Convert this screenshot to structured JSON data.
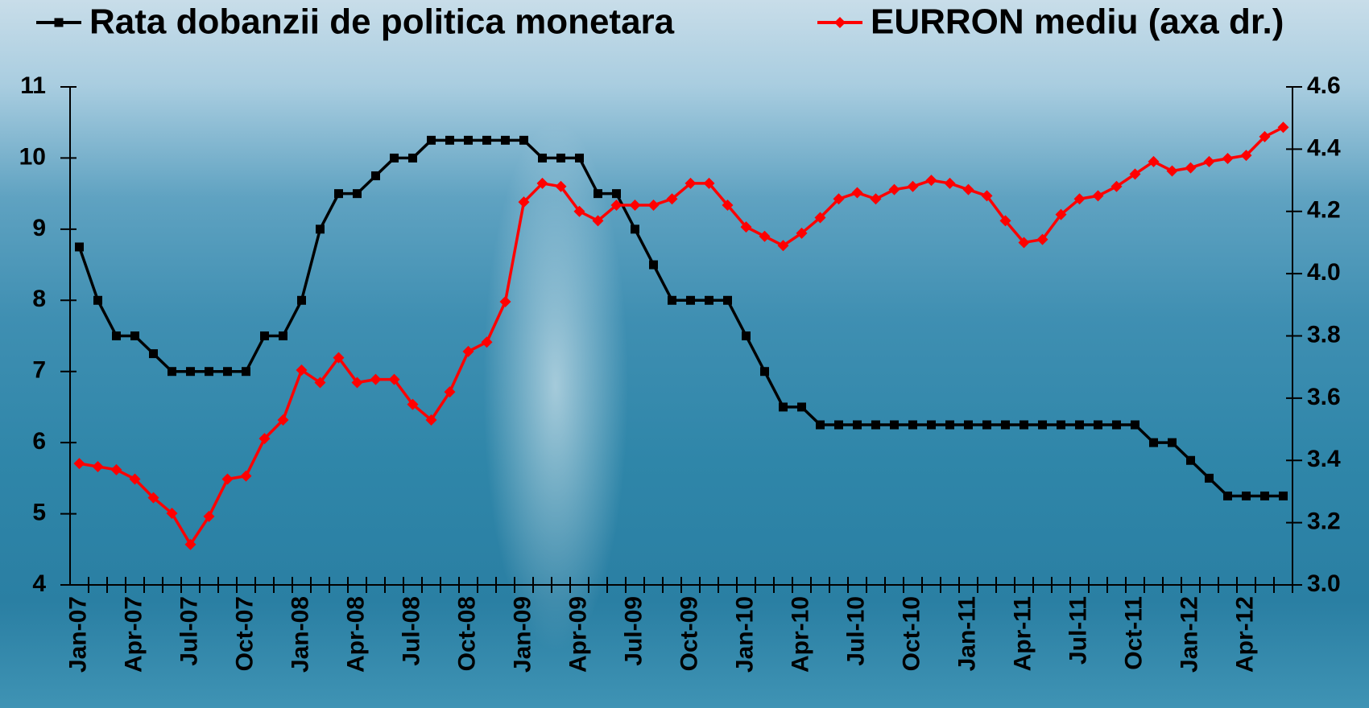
{
  "chart_data": {
    "type": "line",
    "categories": [
      "Jan-07",
      null,
      null,
      "Apr-07",
      null,
      null,
      "Jul-07",
      null,
      null,
      "Oct-07",
      null,
      null,
      "Jan-08",
      null,
      null,
      "Apr-08",
      null,
      null,
      "Jul-08",
      null,
      null,
      "Oct-08",
      null,
      null,
      "Jan-09",
      null,
      null,
      "Apr-09",
      null,
      null,
      "Jul-09",
      null,
      null,
      "Oct-09",
      null,
      null,
      "Jan-10",
      null,
      null,
      "Apr-10",
      null,
      null,
      "Jul-10",
      null,
      null,
      "Oct-10",
      null,
      null,
      "Jan-11",
      null,
      null,
      "Apr-11",
      null,
      null,
      "Jul-11",
      null,
      null,
      "Oct-11",
      null,
      null,
      "Jan-12",
      null,
      null,
      "Apr-12",
      null,
      null
    ],
    "series": [
      {
        "name": "Rata dobanzii de politica monetara",
        "color": "#000000",
        "marker": "square",
        "values": [
          8.75,
          8.0,
          7.5,
          7.5,
          7.25,
          7.0,
          7.0,
          7.0,
          7.0,
          7.0,
          7.5,
          7.5,
          8.0,
          9.0,
          9.5,
          9.5,
          9.75,
          10.0,
          10.0,
          10.25,
          10.25,
          10.25,
          10.25,
          10.25,
          10.25,
          10.0,
          10.0,
          10.0,
          9.5,
          9.5,
          9.0,
          8.5,
          8.0,
          8.0,
          8.0,
          8.0,
          7.5,
          7.0,
          6.5,
          6.5,
          6.25,
          6.25,
          6.25,
          6.25,
          6.25,
          6.25,
          6.25,
          6.25,
          6.25,
          6.25,
          6.25,
          6.25,
          6.25,
          6.25,
          6.25,
          6.25,
          6.25,
          6.25,
          6.0,
          6.0,
          5.75,
          5.5,
          5.25,
          5.25,
          5.25,
          5.25
        ]
      },
      {
        "name": "EURRON mediu (axa dr.)",
        "color": "#ff0000",
        "marker": "diamond",
        "axis": "y2",
        "values": [
          3.39,
          3.38,
          3.37,
          3.34,
          3.28,
          3.23,
          3.13,
          3.22,
          3.34,
          3.35,
          3.47,
          3.53,
          3.69,
          3.65,
          3.73,
          3.65,
          3.66,
          3.66,
          3.58,
          3.53,
          3.62,
          3.75,
          3.78,
          3.91,
          4.23,
          4.29,
          4.28,
          4.2,
          4.17,
          4.22,
          4.22,
          4.22,
          4.24,
          4.29,
          4.29,
          4.22,
          4.15,
          4.12,
          4.09,
          4.13,
          4.18,
          4.24,
          4.26,
          4.24,
          4.27,
          4.28,
          4.3,
          4.29,
          4.27,
          4.25,
          4.17,
          4.1,
          4.11,
          4.19,
          4.24,
          4.25,
          4.28,
          4.32,
          4.36,
          4.33,
          4.34,
          4.36,
          4.37,
          4.38,
          4.44,
          4.47
        ]
      }
    ],
    "ylim": [
      4,
      11
    ],
    "yticks": [
      4,
      5,
      6,
      7,
      8,
      9,
      10,
      11
    ],
    "y2lim": [
      3.0,
      4.6
    ],
    "y2ticks": [
      {
        "value": 3.0,
        "label": "3.0"
      },
      3.2,
      3.4,
      3.6,
      3.8,
      {
        "value": 4.0,
        "label": "4.0"
      },
      4.2,
      4.4,
      4.6
    ],
    "grid": false,
    "legend": "top"
  }
}
